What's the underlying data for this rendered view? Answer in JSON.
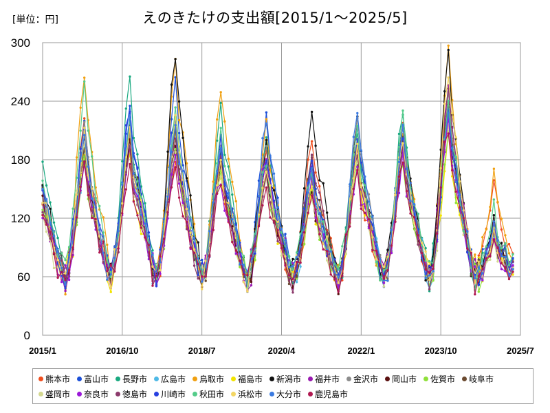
{
  "header": {
    "unit": "[単位：円]",
    "title": "えのきたけの支出額[2015/1～2025/5]"
  },
  "chart_data": {
    "type": "line",
    "title": "えのきたけの支出額[2015/1～2025/5]",
    "ylabel": "",
    "xlabel": "",
    "ylim": [
      0,
      300
    ],
    "y_ticks": [
      "0",
      "60",
      "120",
      "180",
      "240",
      "300"
    ],
    "x_ticks": [
      "2015/1",
      "2016/10",
      "2018/7",
      "2020/4",
      "2022/1",
      "2023/10",
      "2025/7"
    ],
    "x_start": "2015-01",
    "x_end": "2025-07",
    "grid": true,
    "legend_position": "bottom",
    "cycle_months": [
      {
        "month": 1,
        "peak_yr_idx": 0
      },
      {
        "month": 6,
        "trough": true
      },
      {
        "month": 12,
        "peak": true
      }
    ],
    "series": [
      {
        "name": "熊本市",
        "color": "#f04e1e",
        "peaks": [
          175,
          215,
          200,
          180,
          175,
          185,
          200,
          170,
          210,
          230,
          155
        ]
      },
      {
        "name": "富山市",
        "color": "#1b4fd8",
        "peaks": [
          200,
          215,
          235,
          260,
          185,
          225,
          175,
          220,
          215,
          230,
          115
        ]
      },
      {
        "name": "長野市",
        "color": "#19a980",
        "peaks": [
          228,
          190,
          258,
          195,
          238,
          200,
          180,
          215,
          235,
          240,
          120
        ]
      },
      {
        "name": "広島市",
        "color": "#4fb9e6",
        "peaks": [
          160,
          180,
          200,
          190,
          180,
          175,
          160,
          190,
          195,
          220,
          110
        ]
      },
      {
        "name": "鳥取市",
        "color": "#f0a010",
        "peaks": [
          170,
          267,
          210,
          280,
          255,
          220,
          150,
          195,
          210,
          287,
          160
        ]
      },
      {
        "name": "福島市",
        "color": "#f2e400",
        "peaks": [
          155,
          190,
          180,
          200,
          170,
          165,
          150,
          180,
          190,
          200,
          100
        ]
      },
      {
        "name": "新潟市",
        "color": "#111111",
        "peaks": [
          190,
          210,
          225,
          288,
          180,
          200,
          235,
          225,
          215,
          285,
          120
        ]
      },
      {
        "name": "福井市",
        "color": "#9919b0",
        "peaks": [
          165,
          185,
          195,
          190,
          175,
          180,
          165,
          195,
          200,
          250,
          115
        ]
      },
      {
        "name": "金沢市",
        "color": "#8c8c8c",
        "peaks": [
          180,
          210,
          200,
          215,
          190,
          195,
          170,
          230,
          210,
          245,
          110
        ]
      },
      {
        "name": "岡山市",
        "color": "#5a1010",
        "peaks": [
          170,
          195,
          210,
          200,
          175,
          170,
          155,
          185,
          190,
          230,
          105
        ]
      },
      {
        "name": "佐賀市",
        "color": "#8fe03a",
        "peaks": [
          150,
          180,
          195,
          190,
          170,
          165,
          150,
          175,
          185,
          205,
          100
        ]
      },
      {
        "name": "岐阜市",
        "color": "#6b4a30",
        "peaks": [
          175,
          190,
          215,
          205,
          185,
          175,
          185,
          190,
          200,
          235,
          105
        ]
      },
      {
        "name": "盛岡市",
        "color": "#d4d890",
        "peaks": [
          140,
          200,
          185,
          195,
          170,
          165,
          150,
          180,
          190,
          215,
          95
        ]
      },
      {
        "name": "奈良市",
        "color": "#9b18d8",
        "peaks": [
          160,
          180,
          195,
          185,
          165,
          185,
          160,
          175,
          180,
          225,
          100
        ]
      },
      {
        "name": "徳島市",
        "color": "#8c3a6b",
        "peaks": [
          165,
          185,
          190,
          195,
          175,
          170,
          190,
          190,
          195,
          255,
          110
        ]
      },
      {
        "name": "川崎市",
        "color": "#2840e0",
        "peaks": [
          190,
          220,
          240,
          230,
          200,
          185,
          170,
          210,
          210,
          235,
          120
        ]
      },
      {
        "name": "秋田市",
        "color": "#55cc8a",
        "peaks": [
          200,
          250,
          225,
          235,
          210,
          180,
          165,
          205,
          225,
          245,
          130
        ]
      },
      {
        "name": "浜松市",
        "color": "#f3d664",
        "peaks": [
          170,
          205,
          210,
          220,
          180,
          175,
          160,
          190,
          200,
          270,
          105
        ]
      },
      {
        "name": "大分市",
        "color": "#3a7ae0",
        "peaks": [
          185,
          200,
          215,
          225,
          195,
          225,
          165,
          225,
          205,
          235,
          115
        ]
      },
      {
        "name": "鹿児島市",
        "color": "#b01850",
        "peaks": [
          150,
          175,
          180,
          175,
          160,
          160,
          145,
          170,
          175,
          215,
          100
        ]
      }
    ]
  }
}
